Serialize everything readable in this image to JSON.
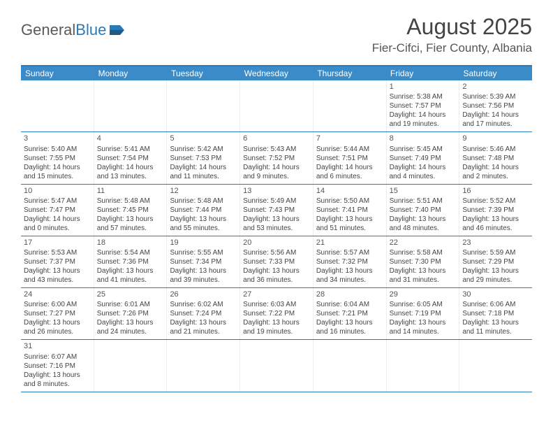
{
  "logo": {
    "text1": "General",
    "text2": "Blue"
  },
  "title": "August 2025",
  "location": "Fier-Cifci, Fier County, Albania",
  "colors": {
    "header_bg": "#3b8bc9",
    "border": "#2a7ab8",
    "text": "#444444",
    "logo_gray": "#5a5a5a",
    "logo_blue": "#2a7ab8"
  },
  "weekdays": [
    "Sunday",
    "Monday",
    "Tuesday",
    "Wednesday",
    "Thursday",
    "Friday",
    "Saturday"
  ],
  "weeks": [
    [
      null,
      null,
      null,
      null,
      null,
      {
        "n": "1",
        "sr": "5:38 AM",
        "ss": "7:57 PM",
        "dl": "14 hours and 19 minutes."
      },
      {
        "n": "2",
        "sr": "5:39 AM",
        "ss": "7:56 PM",
        "dl": "14 hours and 17 minutes."
      }
    ],
    [
      {
        "n": "3",
        "sr": "5:40 AM",
        "ss": "7:55 PM",
        "dl": "14 hours and 15 minutes."
      },
      {
        "n": "4",
        "sr": "5:41 AM",
        "ss": "7:54 PM",
        "dl": "14 hours and 13 minutes."
      },
      {
        "n": "5",
        "sr": "5:42 AM",
        "ss": "7:53 PM",
        "dl": "14 hours and 11 minutes."
      },
      {
        "n": "6",
        "sr": "5:43 AM",
        "ss": "7:52 PM",
        "dl": "14 hours and 9 minutes."
      },
      {
        "n": "7",
        "sr": "5:44 AM",
        "ss": "7:51 PM",
        "dl": "14 hours and 6 minutes."
      },
      {
        "n": "8",
        "sr": "5:45 AM",
        "ss": "7:49 PM",
        "dl": "14 hours and 4 minutes."
      },
      {
        "n": "9",
        "sr": "5:46 AM",
        "ss": "7:48 PM",
        "dl": "14 hours and 2 minutes."
      }
    ],
    [
      {
        "n": "10",
        "sr": "5:47 AM",
        "ss": "7:47 PM",
        "dl": "14 hours and 0 minutes."
      },
      {
        "n": "11",
        "sr": "5:48 AM",
        "ss": "7:45 PM",
        "dl": "13 hours and 57 minutes."
      },
      {
        "n": "12",
        "sr": "5:48 AM",
        "ss": "7:44 PM",
        "dl": "13 hours and 55 minutes."
      },
      {
        "n": "13",
        "sr": "5:49 AM",
        "ss": "7:43 PM",
        "dl": "13 hours and 53 minutes."
      },
      {
        "n": "14",
        "sr": "5:50 AM",
        "ss": "7:41 PM",
        "dl": "13 hours and 51 minutes."
      },
      {
        "n": "15",
        "sr": "5:51 AM",
        "ss": "7:40 PM",
        "dl": "13 hours and 48 minutes."
      },
      {
        "n": "16",
        "sr": "5:52 AM",
        "ss": "7:39 PM",
        "dl": "13 hours and 46 minutes."
      }
    ],
    [
      {
        "n": "17",
        "sr": "5:53 AM",
        "ss": "7:37 PM",
        "dl": "13 hours and 43 minutes."
      },
      {
        "n": "18",
        "sr": "5:54 AM",
        "ss": "7:36 PM",
        "dl": "13 hours and 41 minutes."
      },
      {
        "n": "19",
        "sr": "5:55 AM",
        "ss": "7:34 PM",
        "dl": "13 hours and 39 minutes."
      },
      {
        "n": "20",
        "sr": "5:56 AM",
        "ss": "7:33 PM",
        "dl": "13 hours and 36 minutes."
      },
      {
        "n": "21",
        "sr": "5:57 AM",
        "ss": "7:32 PM",
        "dl": "13 hours and 34 minutes."
      },
      {
        "n": "22",
        "sr": "5:58 AM",
        "ss": "7:30 PM",
        "dl": "13 hours and 31 minutes."
      },
      {
        "n": "23",
        "sr": "5:59 AM",
        "ss": "7:29 PM",
        "dl": "13 hours and 29 minutes."
      }
    ],
    [
      {
        "n": "24",
        "sr": "6:00 AM",
        "ss": "7:27 PM",
        "dl": "13 hours and 26 minutes."
      },
      {
        "n": "25",
        "sr": "6:01 AM",
        "ss": "7:26 PM",
        "dl": "13 hours and 24 minutes."
      },
      {
        "n": "26",
        "sr": "6:02 AM",
        "ss": "7:24 PM",
        "dl": "13 hours and 21 minutes."
      },
      {
        "n": "27",
        "sr": "6:03 AM",
        "ss": "7:22 PM",
        "dl": "13 hours and 19 minutes."
      },
      {
        "n": "28",
        "sr": "6:04 AM",
        "ss": "7:21 PM",
        "dl": "13 hours and 16 minutes."
      },
      {
        "n": "29",
        "sr": "6:05 AM",
        "ss": "7:19 PM",
        "dl": "13 hours and 14 minutes."
      },
      {
        "n": "30",
        "sr": "6:06 AM",
        "ss": "7:18 PM",
        "dl": "13 hours and 11 minutes."
      }
    ],
    [
      {
        "n": "31",
        "sr": "6:07 AM",
        "ss": "7:16 PM",
        "dl": "13 hours and 8 minutes."
      },
      null,
      null,
      null,
      null,
      null,
      null
    ]
  ],
  "labels": {
    "sunrise": "Sunrise:",
    "sunset": "Sunset:",
    "daylight": "Daylight:"
  }
}
